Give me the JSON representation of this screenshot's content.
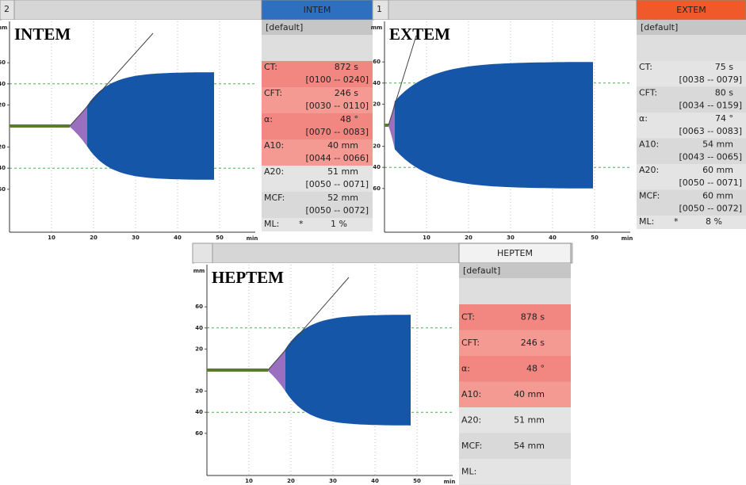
{
  "panels": [
    {
      "tab_number": "2",
      "tab_title": "INTEM",
      "chart_title": "INTEM",
      "unit_y": "mm",
      "unit_x": "min",
      "xticks": [
        10,
        20,
        30,
        40,
        50
      ],
      "yticks": [
        60,
        40,
        20,
        {
          "value": -20,
          "label": "20"
        },
        {
          "value": -40,
          "label": "40"
        },
        {
          "value": -60,
          "label": "60"
        }
      ],
      "profile": "[default]",
      "params": [
        {
          "label": "CT:",
          "value": "872 s",
          "range": "[0100 -- 0240]",
          "highlight": true
        },
        {
          "label": "CFT:",
          "value": "246 s",
          "range": "[0030 -- 0110]",
          "highlight": true
        },
        {
          "label": "α:",
          "value": "48 °",
          "range": "[0070 -- 0083]",
          "highlight": true
        },
        {
          "label": "A10:",
          "value": "40 mm",
          "range": "[0044 -- 0066]",
          "highlight": true
        },
        {
          "label": "A20:",
          "value": "51 mm",
          "range": "[0050 -- 0071]",
          "highlight": false
        },
        {
          "label": "MCF:",
          "value": "52 mm",
          "range": "[0050 -- 0072]",
          "highlight": false
        },
        {
          "label": "ML:",
          "flag": "*",
          "value": "1 %",
          "highlight": false
        }
      ]
    },
    {
      "tab_number": "1",
      "tab_title": "EXTEM",
      "chart_title": "EXTEM",
      "unit_y": "mm",
      "unit_x": "min",
      "xticks": [
        10,
        20,
        30,
        40,
        50
      ],
      "yticks": [
        60,
        40,
        20,
        {
          "value": -20,
          "label": "20"
        },
        {
          "value": -40,
          "label": "40"
        },
        {
          "value": -60,
          "label": "60"
        }
      ],
      "profile": "[default]",
      "params": [
        {
          "label": "CT:",
          "value": "75 s",
          "range": "[0038 -- 0079]",
          "highlight": false
        },
        {
          "label": "CFT:",
          "value": "80 s",
          "range": "[0034 -- 0159]",
          "highlight": false
        },
        {
          "label": "α:",
          "value": "74 °",
          "range": "[0063 -- 0083]",
          "highlight": false
        },
        {
          "label": "A10:",
          "value": "54 mm",
          "range": "[0043 -- 0065]",
          "highlight": false
        },
        {
          "label": "A20:",
          "value": "60 mm",
          "range": "[0050 -- 0071]",
          "highlight": false
        },
        {
          "label": "MCF:",
          "value": "60 mm",
          "range": "[0050 -- 0072]",
          "highlight": false
        },
        {
          "label": "ML:",
          "flag": "*",
          "value": "8 %",
          "highlight": false
        }
      ]
    },
    {
      "tab_title": "HEPTEM",
      "chart_title": "HEPTEM",
      "unit_y": "mm",
      "unit_x": "min",
      "xticks": [
        10,
        20,
        30,
        40,
        50
      ],
      "yticks": [
        60,
        40,
        20,
        {
          "value": -20,
          "label": "20"
        },
        {
          "value": -40,
          "label": "40"
        },
        {
          "value": -60,
          "label": "60"
        }
      ],
      "profile": "[default]",
      "params": [
        {
          "label": "CT:",
          "value": "878 s",
          "highlight": true
        },
        {
          "label": "CFT:",
          "value": "246 s",
          "highlight": true
        },
        {
          "label": "α:",
          "value": "48 °",
          "highlight": true
        },
        {
          "label": "A10:",
          "value": "40 mm",
          "highlight": true
        },
        {
          "label": "A20:",
          "value": "51 mm",
          "highlight": false
        },
        {
          "label": "MCF:",
          "value": "54 mm",
          "highlight": false
        },
        {
          "label": "ML:",
          "highlight": false
        }
      ]
    }
  ]
}
